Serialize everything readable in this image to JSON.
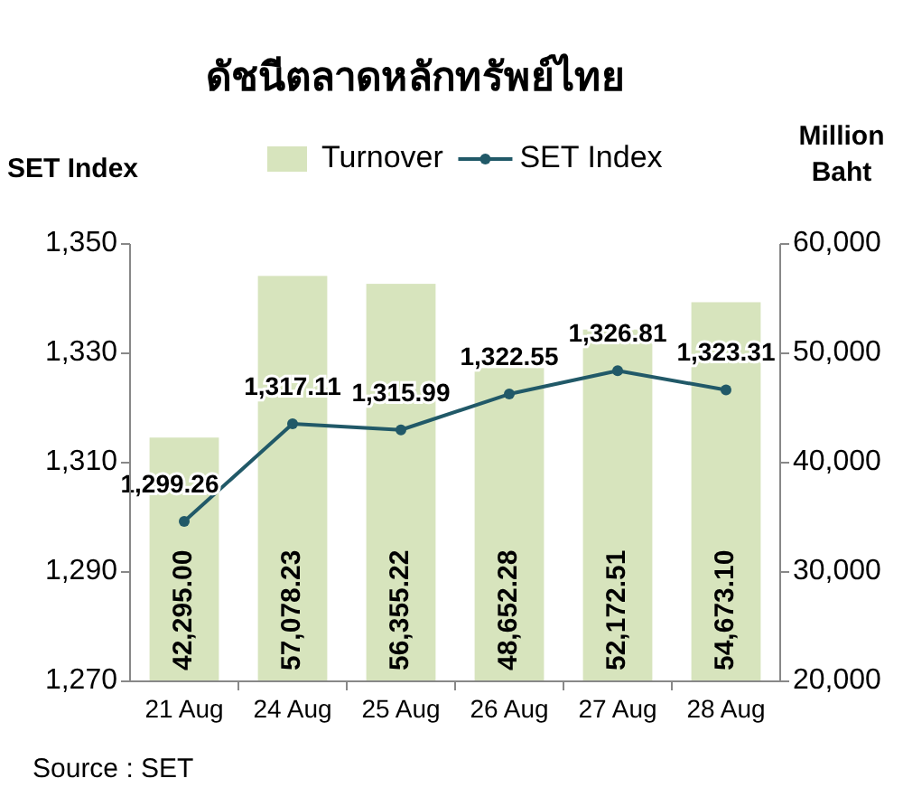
{
  "chart_data": {
    "type": "bar",
    "title": "ดัชนีตลาดหลักทรัพย์ไทย",
    "ylabel": "SET Index",
    "y2label": "Million Baht",
    "categories": [
      "21 Aug",
      "24 Aug",
      "25 Aug",
      "26 Aug",
      "27 Aug",
      "28 Aug"
    ],
    "series": [
      {
        "name": "Turnover",
        "axis": "y2",
        "color": "#d7e4bd",
        "values": [
          42295.0,
          57078.23,
          56355.22,
          48652.28,
          52172.51,
          54673.1
        ],
        "value_labels": [
          "42,295.00",
          "57,078.23",
          "56,355.22",
          "48,652.28",
          "52,172.51",
          "54,673.10"
        ]
      },
      {
        "name": "SET Index",
        "type": "line",
        "color": "#215968",
        "marker": "circle",
        "values": [
          1299.26,
          1317.11,
          1315.99,
          1322.55,
          1326.81,
          1323.31
        ],
        "value_labels": [
          "1,299.26",
          "1,317.11",
          "1,315.99",
          "1,322.55",
          "1,326.81",
          "1,323.31"
        ]
      }
    ],
    "ylim": [
      1270,
      1350
    ],
    "yticks": [
      {
        "value": 1270,
        "label": "1,270"
      },
      {
        "value": 1290,
        "label": "1,290"
      },
      {
        "value": 1310,
        "label": "1,310"
      },
      {
        "value": 1330,
        "label": "1,330"
      },
      {
        "value": 1350,
        "label": "1,350"
      }
    ],
    "y2lim": [
      20000,
      60000
    ],
    "y2ticks": [
      {
        "value": 20000,
        "label": "20,000"
      },
      {
        "value": 30000,
        "label": "30,000"
      },
      {
        "value": 40000,
        "label": "40,000"
      },
      {
        "value": 50000,
        "label": "50,000"
      },
      {
        "value": 60000,
        "label": "60,000"
      }
    ],
    "legend": "top",
    "grid": false,
    "annotations": [
      "Source : SET"
    ]
  }
}
